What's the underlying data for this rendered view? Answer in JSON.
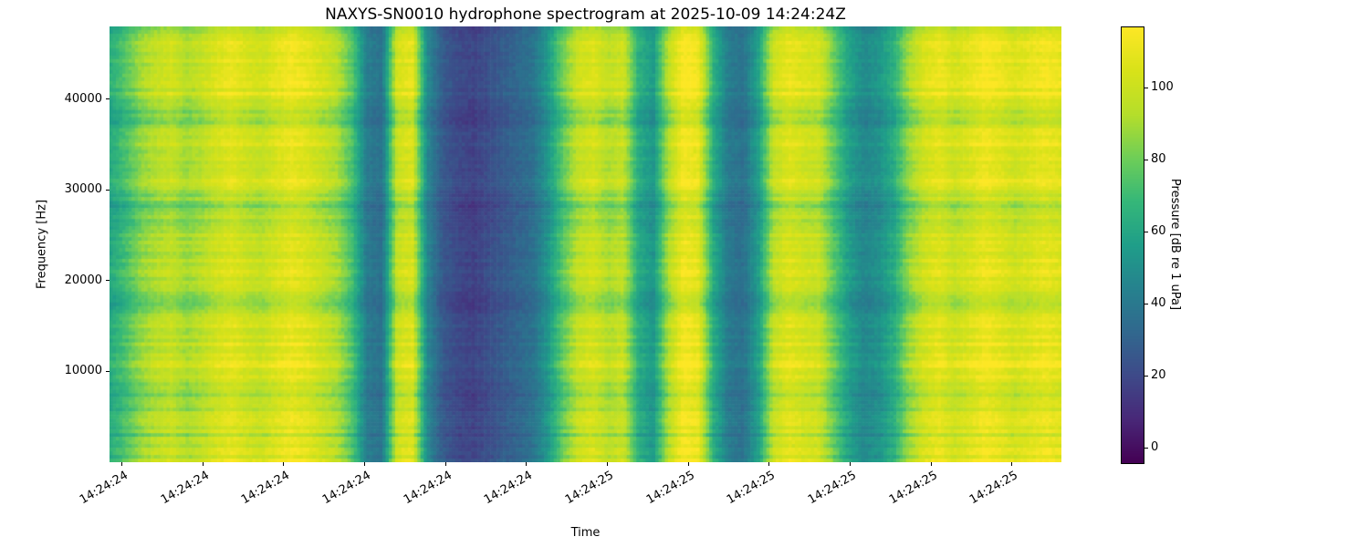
{
  "chart_data": {
    "type": "heatmap",
    "title": "NAXYS-SN0010 hydrophone spectrogram at 2025-10-09 14:24:24Z",
    "xlabel": "Time",
    "ylabel": "Frequency [Hz]",
    "colorbar_label": "Pressure [dB re 1 uPa]",
    "colormap": "viridis",
    "viridis_stops": [
      "#440154",
      "#482878",
      "#3e4a89",
      "#31688e",
      "#26828e",
      "#1f9e89",
      "#35b779",
      "#6ece58",
      "#b5de2b",
      "#d8e219",
      "#fde725"
    ],
    "value_range_db": [
      -4,
      117
    ],
    "colorbar_ticks": [
      0,
      20,
      40,
      60,
      80,
      100
    ],
    "x_tick_labels": [
      "14:24:24",
      "14:24:24",
      "14:24:24",
      "14:24:24",
      "14:24:24",
      "14:24:24",
      "14:24:25",
      "14:24:25",
      "14:24:25",
      "14:24:25",
      "14:24:25",
      "14:24:25"
    ],
    "y_ticks": [
      10000,
      20000,
      30000,
      40000
    ],
    "freq_range_hz": [
      0,
      48000
    ],
    "grid": false,
    "legend": "none",
    "time_profile_db": [
      62,
      72,
      85,
      92,
      96,
      88,
      93,
      100,
      105,
      99,
      96,
      103,
      108,
      104,
      97,
      90,
      72,
      40,
      36,
      98,
      104,
      46,
      26,
      20,
      17,
      21,
      26,
      31,
      36,
      52,
      76,
      95,
      101,
      91,
      96,
      62,
      52,
      90,
      112,
      107,
      62,
      40,
      36,
      56,
      95,
      105,
      100,
      98,
      76,
      56,
      46,
      50,
      62,
      86,
      100,
      106,
      98,
      103,
      110,
      106,
      100,
      104,
      108,
      105
    ],
    "striation_db": {
      "row_noise": 7,
      "freq_band_mod": 6,
      "cell_noise": 3
    }
  }
}
